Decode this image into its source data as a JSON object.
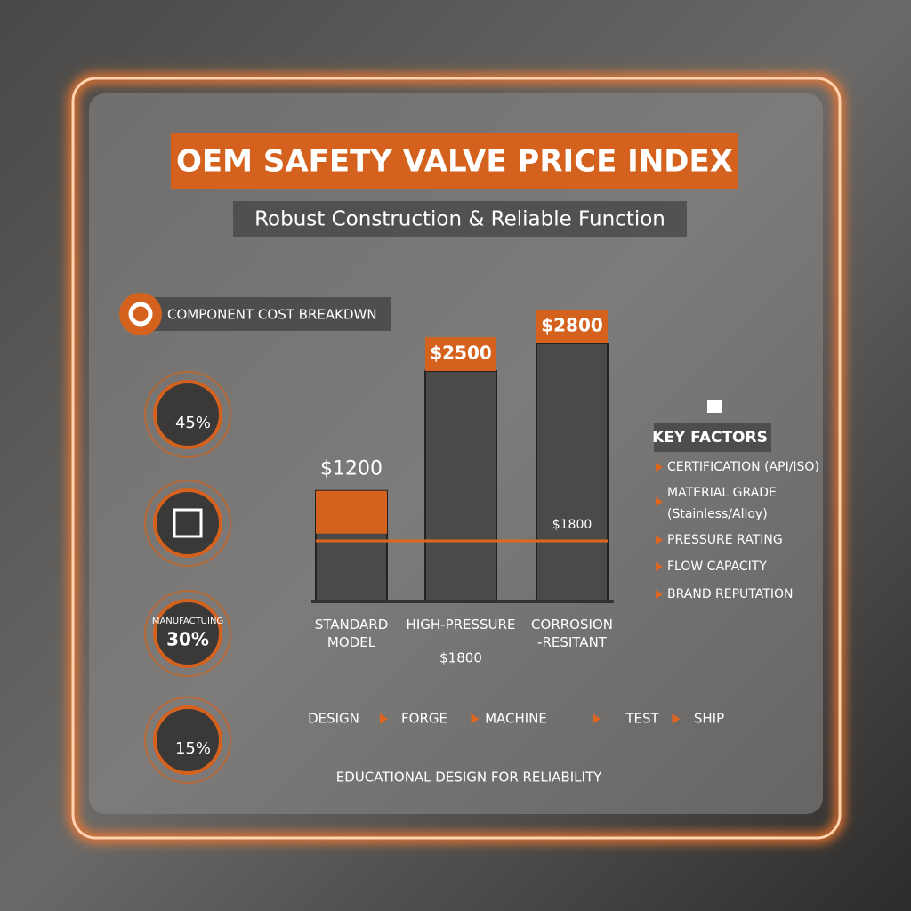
{
  "header": {
    "title": "OEM SAFETY VALVE PRICE INDEX",
    "subtitle": "Robust Construction & Reliable Function"
  },
  "breakdown": {
    "title": "COMPONENT COST BREAKDWN",
    "items": [
      {
        "value": "45%"
      },
      {
        "label": "MANUFACTUING",
        "value": "30%"
      },
      {
        "value": "15%"
      }
    ]
  },
  "models": [
    {
      "name": "STANDARD MODEL",
      "price": 1200,
      "price_label": "$1200"
    },
    {
      "name": "HIGH-PRESSURE",
      "sub": "$1800",
      "price": 2500,
      "price_label": "$2500"
    },
    {
      "name": "CORROSION -RESITANT",
      "price": 2800,
      "price_label": "$2800",
      "inner": "$1800"
    }
  ],
  "key_factors": {
    "title": "KEY FACTORS",
    "items": [
      "CERTIFICATION (API/ISO)",
      "MATERIAL GRADE (Stainless/Alloy)",
      "PRESSURE RATING",
      "FLOW CAPACITY",
      "BRAND REPUTATION"
    ]
  },
  "process": [
    "DESIGN",
    "FORGE",
    "MACHINE",
    "TEST",
    "SHIP"
  ],
  "footer": "EDUCATIONAL DESIGN FOR RELIABILITY"
}
